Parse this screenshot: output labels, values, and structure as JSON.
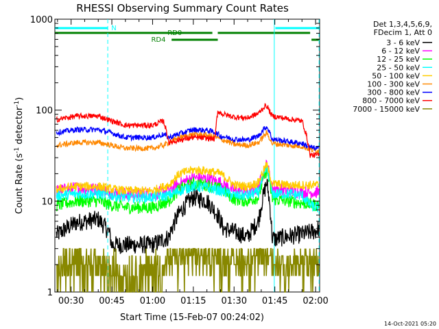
{
  "chart_data": {
    "type": "line",
    "title": "RHESSI Observing Summary Count Rates",
    "xlabel": "Start Time (15-Feb-07 00:24:02)",
    "ylabel_main": "Count Rate (s",
    "ylabel_sup1": "-1",
    "ylabel_mid": " detector",
    "ylabel_sup2": "-1",
    "ylabel_end": ")",
    "ylog": true,
    "ylim": [
      1,
      1000
    ],
    "xlim_minutes": [
      24.03,
      121.5
    ],
    "x_ticks": [
      "00:30",
      "00:45",
      "01:00",
      "01:15",
      "01:30",
      "01:45",
      "02:00"
    ],
    "x_tick_minutes": [
      30,
      45,
      60,
      75,
      90,
      105,
      120
    ],
    "y_ticks": [
      "1",
      "10",
      "100",
      "1000"
    ],
    "y_tick_values": [
      1,
      10,
      100,
      1000
    ],
    "legend_header": [
      "Det 1,3,4,5,6,9,",
      "FDecim 1, Att 0"
    ],
    "series": [
      {
        "name": "3 - 6 keV",
        "color": "#000000",
        "x": [
          25,
          32,
          40,
          44,
          45,
          50,
          60,
          66,
          70,
          75,
          80,
          84,
          86,
          90,
          95,
          99,
          101,
          102,
          103,
          104,
          105,
          110,
          115,
          120,
          121
        ],
        "y": [
          4.3,
          5.8,
          6.3,
          4.5,
          3.3,
          3.3,
          3.3,
          4.0,
          7.5,
          11,
          10,
          7,
          5,
          4.6,
          4.0,
          6,
          12,
          16,
          10,
          4,
          3.8,
          4.1,
          4.3,
          4.7,
          5.0
        ]
      },
      {
        "name": "6 - 12 keV",
        "color": "#ff00ff",
        "x": [
          25,
          32,
          40,
          45,
          50,
          60,
          66,
          70,
          75,
          80,
          85,
          90,
          95,
          99,
          101,
          102,
          103,
          104,
          110,
          115,
          120,
          121
        ],
        "y": [
          13,
          14,
          13.5,
          12.5,
          12,
          12,
          13,
          15.5,
          18,
          17.5,
          16,
          13,
          12.5,
          14,
          21,
          25,
          20,
          14,
          13,
          12.5,
          12.5,
          12.5
        ]
      },
      {
        "name": "12 - 25 keV",
        "color": "#00ff00",
        "x": [
          25,
          32,
          40,
          45,
          50,
          60,
          66,
          70,
          75,
          80,
          85,
          90,
          95,
          99,
          101,
          102,
          103,
          104,
          110,
          115,
          120,
          121
        ],
        "y": [
          9,
          10,
          10,
          9,
          8.5,
          8.5,
          10,
          13.5,
          15.5,
          15,
          13.5,
          10.5,
          10,
          11,
          18,
          22,
          16,
          10.5,
          10,
          9.5,
          9,
          9
        ]
      },
      {
        "name": "25 - 50 keV",
        "color": "#00ffff",
        "x": [
          25,
          32,
          40,
          45,
          50,
          60,
          66,
          70,
          75,
          80,
          85,
          90,
          95,
          99,
          101,
          102,
          103,
          104,
          110,
          115,
          118,
          120,
          121
        ],
        "y": [
          11.5,
          12,
          12,
          11.5,
          11,
          11,
          11.5,
          13,
          14.5,
          14,
          13,
          11.5,
          11.5,
          12.5,
          19,
          23,
          18,
          12,
          12,
          11.5,
          9,
          8.5,
          8.5
        ]
      },
      {
        "name": "50 - 100 keV",
        "color": "#ffcc00",
        "x": [
          25,
          32,
          40,
          45,
          50,
          60,
          66,
          70,
          75,
          80,
          85,
          90,
          95,
          99,
          101,
          102,
          103,
          104,
          110,
          115,
          118,
          120,
          121
        ],
        "y": [
          13.5,
          14.5,
          14.5,
          13.5,
          13,
          13,
          15,
          20,
          22,
          21.5,
          20,
          15,
          14.5,
          16,
          22,
          25,
          20,
          15.5,
          15,
          15,
          15,
          15,
          15
        ]
      },
      {
        "name": "100 - 300 keV",
        "color": "#ff8800",
        "x": [
          25,
          32,
          40,
          45,
          50,
          60,
          64,
          66,
          70,
          75,
          80,
          83,
          85,
          90,
          95,
          99,
          101,
          102,
          103,
          104,
          110,
          115,
          118,
          120,
          121
        ],
        "y": [
          41,
          44,
          44,
          41,
          38,
          38,
          41,
          44,
          50,
          54,
          53,
          51,
          48,
          42,
          41,
          44,
          52,
          56,
          50,
          43,
          41,
          40,
          37,
          36,
          36
        ]
      },
      {
        "name": "300 - 800 keV",
        "color": "#0000ff",
        "x": [
          25,
          32,
          40,
          45,
          50,
          60,
          64,
          66,
          70,
          75,
          80,
          83,
          85,
          90,
          95,
          99,
          101,
          102,
          103,
          104,
          110,
          115,
          118,
          120,
          121
        ],
        "y": [
          57,
          61,
          61,
          56,
          50,
          50,
          54,
          50,
          55,
          61,
          60,
          57,
          52,
          48,
          47,
          52,
          62,
          66,
          58,
          48,
          45,
          43,
          39,
          38,
          38
        ]
      },
      {
        "name": "800 - 7000 keV",
        "color": "#ff0000",
        "x": [
          25,
          32,
          40,
          45,
          50,
          60,
          64,
          66,
          70,
          75,
          80,
          83,
          84,
          86,
          90,
          95,
          99,
          101,
          102,
          103,
          104,
          110,
          115,
          118,
          120,
          121
        ],
        "y": [
          79,
          86,
          86,
          76,
          68,
          68,
          76,
          44,
          47,
          50,
          49,
          48,
          97,
          90,
          84,
          82,
          92,
          108,
          112,
          98,
          86,
          80,
          76,
          32,
          32,
          32
        ]
      },
      {
        "name": "7000 - 15000 keV",
        "color": "#888800",
        "x": [
          25,
          35,
          43,
          50,
          60,
          64,
          67,
          70,
          75,
          80,
          85,
          90,
          95,
          100,
          102,
          104,
          110,
          115,
          120,
          121
        ],
        "y": [
          2.1,
          2.5,
          1.6,
          1.5,
          1.7,
          2.1,
          2.6,
          3.0,
          3.1,
          3.0,
          2.9,
          2.6,
          2.6,
          2.8,
          3.2,
          2.4,
          2.2,
          2.2,
          2.1,
          2.1
        ]
      }
    ],
    "status_bars": [
      {
        "label": "N",
        "color": "#00ffff",
        "segments_minutes": [
          [
            24.03,
            43.5
          ],
          [
            105.2,
            121.5
          ]
        ]
      },
      {
        "label": "RD0",
        "color": "#008000",
        "segments_minutes": [
          [
            24.03,
            82.0
          ],
          [
            84.0,
            118.0
          ]
        ]
      },
      {
        "label": "RD4",
        "color": "#008000",
        "segments_minutes": [
          [
            67.0,
            84.0
          ],
          [
            118.5,
            121.5
          ]
        ]
      }
    ],
    "vlines_minutes": [
      43.5,
      104.8,
      121.3
    ],
    "footer_date": "14-Oct-2021 05:20"
  }
}
